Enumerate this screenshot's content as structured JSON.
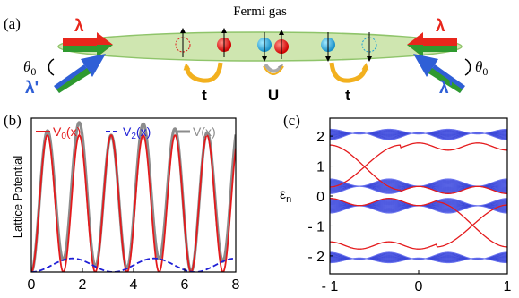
{
  "panel_a": {
    "label": "(a)",
    "title": "Fermi gas",
    "lambda": "λ",
    "lambda_prime": "λ'",
    "theta": "θ",
    "theta_sub": "0",
    "hop_left": "t",
    "interaction": "U",
    "hop_right": "t",
    "colors": {
      "gas": "#c9e4a8",
      "red_arrow": "#e8261c",
      "blue_arrow": "#2f5fd6",
      "green": "#2f9a2f",
      "hop": "#f2b01e",
      "particle_red": "#e01b1b",
      "particle_cyan": "#1e9fd6"
    }
  },
  "panel_b": {
    "label": "(b)",
    "ylabel": "Lattice Potential",
    "legend": [
      "V0(x)",
      "V2(x)",
      "V(x)"
    ],
    "legend_display": [
      {
        "main": "V",
        "sub": "0",
        "tail": "(x)"
      },
      {
        "main": "V",
        "sub": "2",
        "tail": "(x)"
      },
      {
        "main": "V",
        "sub": "",
        "tail": "(x)"
      }
    ]
  },
  "panel_c": {
    "label": "(c)",
    "ylabel_main": "ε",
    "ylabel_sub": "n"
  },
  "chart_data": [
    {
      "type": "line",
      "panel": "b",
      "xlabel": "",
      "ylabel": "Lattice Potential",
      "xlim": [
        0,
        8
      ],
      "xticks": [
        0,
        2,
        4,
        6,
        8
      ],
      "ylim": [
        0,
        2.25
      ],
      "legend_position": "top",
      "series": [
        {
          "name": "V0(x)",
          "color": "#e41a1c",
          "style": "solid",
          "formula": "1 - cos(2*pi*x/1.25)",
          "samples_x": [
            0,
            0.625,
            1.25,
            1.875,
            2.5
          ],
          "samples_y": [
            0,
            2,
            0,
            2,
            0
          ]
        },
        {
          "name": "V2(x)",
          "color": "#1f1fd6",
          "style": "dashed",
          "formula": "0.1*(1 - cos(2*pi*x/3.2))",
          "samples_x": [
            0,
            1.6,
            3.2,
            4.8,
            6.4
          ],
          "samples_y": [
            0,
            0.2,
            0,
            0.2,
            0
          ]
        },
        {
          "name": "V(x)",
          "color": "#8c8c8c",
          "style": "solid",
          "formula": "V0(x) + V2(x)"
        }
      ]
    },
    {
      "type": "line",
      "panel": "c",
      "xlabel": "",
      "ylabel": "εn",
      "xlim": [
        -1,
        1
      ],
      "xticks": [
        -1,
        0,
        1
      ],
      "ylim": [
        -2.6,
        2.6
      ],
      "yticks": [
        -2,
        -1,
        0,
        1,
        2
      ],
      "bands": [
        {
          "color": "#4b58e6",
          "lower_mid": 2.0,
          "upper_mid": 2.15,
          "lower_amp": 0.12,
          "upper_amp": 0.08
        },
        {
          "color": "#4b58e6",
          "lower_mid": 0.2,
          "upper_mid": 0.45,
          "lower_amp": 0.12,
          "upper_amp": 0.12
        },
        {
          "color": "#4b58e6",
          "lower_mid": -0.45,
          "upper_mid": -0.2,
          "lower_amp": 0.12,
          "upper_amp": 0.12
        },
        {
          "color": "#4b58e6",
          "lower_mid": -2.15,
          "upper_mid": -2.0,
          "lower_amp": 0.08,
          "upper_amp": 0.12
        }
      ],
      "edge_states": [
        {
          "color": "#e41a1c",
          "crossings": [
            {
              "x": -0.6,
              "y": 1.05
            },
            {
              "x": 0.6,
              "y": -1.05
            }
          ]
        }
      ]
    }
  ]
}
